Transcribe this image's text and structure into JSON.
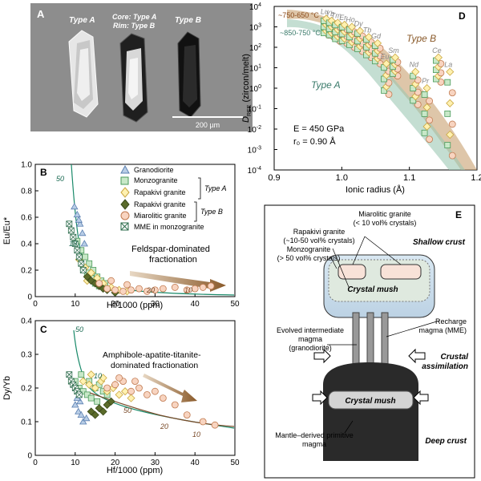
{
  "panel_a": {
    "letter": "A",
    "label_type_a": "Type A",
    "label_core": "Core: Type A",
    "label_rim": "Rim: Type B",
    "label_type_b": "Type B",
    "scalebar": "200 µm"
  },
  "panel_b": {
    "letter": "B",
    "ylabel": "Eu/Eu*",
    "xlabel": "Hf/1000 (ppm)",
    "annotation_line1": "Feldspar-dominated",
    "annotation_line2": "fractionation",
    "curve_labels": [
      "50",
      "10",
      "20",
      "10"
    ]
  },
  "panel_c": {
    "letter": "C",
    "ylabel": "Dy/Yb",
    "xlabel": "Hf/1000 (ppm)",
    "annotation_line1": "Amphibole-apatite-titanite-",
    "annotation_line2": "dominated fractionation",
    "curve_labels": [
      "50",
      "10",
      "50",
      "20",
      "10"
    ]
  },
  "legend": {
    "items": [
      "Granodiorite",
      "Monzogranite",
      "Rapakivi granite",
      "Rapakivi granite",
      "Miarolitic granite",
      "MME in monzogranite"
    ],
    "type_a": "Type A",
    "type_b": "Type B"
  },
  "panel_d": {
    "letter": "D",
    "ylabel_main": "D",
    "ylabel_sub": "REE",
    "ylabel_rest": " (zircon/melt)",
    "xlabel": "Ionic radius (Å)",
    "temp_high": "~750-650 °C",
    "temp_low": "~850-750 °C",
    "type_a": "Type A",
    "type_b": "Type B",
    "param_e": "E = 450 GPa",
    "param_r": "r₀ = 0.90 Å",
    "elements": [
      "Yb",
      "Er",
      "Dy",
      "Gd",
      "Lu",
      "Tm",
      "Ho",
      "Sm",
      "Tb",
      "Nd",
      "Ce",
      "La",
      "Eu",
      "Pr"
    ]
  },
  "panel_e": {
    "letter": "E",
    "miarolitic_1": "Miarolitic granite",
    "miarolitic_2": "(< 10 vol% crystals)",
    "rapakivi_1": "Rapakivi granite",
    "rapakivi_2": "(~10-50 vol% crystals)",
    "monzo_1": "Monzogranite",
    "monzo_2": "(> 50 vol% crystals)",
    "shallow": "Shallow crust",
    "mush_top": "Crystal mush",
    "recharge_1": "Recharge",
    "recharge_2": "magma (MME)",
    "evolved_1": "Evolved intermediate",
    "evolved_2": "magma",
    "evolved_3": "(granodiorite)",
    "assim_1": "Crustal",
    "assim_2": "assimilation",
    "mush_bottom": "Crystal mush",
    "mantle_1": "Mantle–derived primitive",
    "mantle_2": "magma",
    "deep": "Deep crust"
  },
  "chart_data": [
    {
      "type": "scatter",
      "panel": "B",
      "xlabel": "Hf/1000 (ppm)",
      "ylabel": "Eu/Eu*",
      "xlim": [
        0,
        50
      ],
      "ylim": [
        0,
        1.0
      ],
      "xticks": [
        0,
        10,
        20,
        30,
        40,
        50
      ],
      "yticks": [
        0,
        0.2,
        0.4,
        0.6,
        0.8,
        1.0
      ],
      "series": [
        {
          "name": "Granodiorite",
          "x": [
            9.8,
            10.5,
            11.2,
            11.8,
            12.3,
            10.9
          ],
          "y": [
            0.68,
            0.62,
            0.55,
            0.48,
            0.4,
            0.58
          ]
        },
        {
          "name": "Monzogranite",
          "x": [
            10.5,
            11.5,
            12.5,
            13.5,
            14.5,
            15.5,
            16.5,
            17.5,
            12,
            13,
            14,
            15,
            16
          ],
          "y": [
            0.42,
            0.35,
            0.3,
            0.25,
            0.2,
            0.15,
            0.12,
            0.1,
            0.22,
            0.18,
            0.14,
            0.1,
            0.08
          ]
        },
        {
          "name": "Rapakivi granite (Type A)",
          "x": [
            11,
            12.5,
            14,
            15.5,
            17,
            19,
            21,
            23,
            13,
            16,
            18
          ],
          "y": [
            0.28,
            0.22,
            0.18,
            0.14,
            0.1,
            0.07,
            0.05,
            0.04,
            0.12,
            0.08,
            0.06
          ]
        },
        {
          "name": "Rapakivi granite (Type B)",
          "x": [
            13,
            14,
            15,
            16,
            17,
            18,
            20
          ],
          "y": [
            0.15,
            0.12,
            0.1,
            0.08,
            0.06,
            0.05,
            0.03
          ]
        },
        {
          "name": "Miarolitic granite",
          "x": [
            18,
            20,
            22,
            24,
            26,
            28,
            30,
            32,
            35,
            38,
            40,
            42,
            44,
            16,
            19,
            23
          ],
          "y": [
            0.06,
            0.05,
            0.04,
            0.05,
            0.06,
            0.04,
            0.05,
            0.06,
            0.07,
            0.05,
            0.06,
            0.07,
            0.08,
            0.1,
            0.12,
            0.09
          ]
        },
        {
          "name": "MME in monzogranite",
          "x": [
            8.5,
            9,
            9.5,
            10,
            10.5,
            11,
            11.5,
            12
          ],
          "y": [
            0.55,
            0.5,
            0.45,
            0.4,
            0.35,
            0.3,
            0.25,
            0.2
          ]
        }
      ]
    },
    {
      "type": "scatter",
      "panel": "C",
      "xlabel": "Hf/1000 (ppm)",
      "ylabel": "Dy/Yb",
      "xlim": [
        0,
        50
      ],
      "ylim": [
        0,
        0.4
      ],
      "xticks": [
        0,
        10,
        20,
        30,
        40,
        50
      ],
      "yticks": [
        0,
        0.1,
        0.2,
        0.3,
        0.4
      ],
      "series": [
        {
          "name": "Granodiorite",
          "x": [
            10,
            10.8,
            11.5,
            12,
            12.8,
            11.2,
            10.5
          ],
          "y": [
            0.15,
            0.13,
            0.12,
            0.1,
            0.11,
            0.16,
            0.17
          ]
        },
        {
          "name": "Monzogranite",
          "x": [
            10,
            11,
            12,
            13,
            14,
            15,
            16,
            17,
            18,
            11.5,
            13.5,
            15.5
          ],
          "y": [
            0.22,
            0.2,
            0.19,
            0.18,
            0.17,
            0.2,
            0.21,
            0.19,
            0.18,
            0.24,
            0.22,
            0.16
          ]
        },
        {
          "name": "Rapakivi granite (Type A)",
          "x": [
            12,
            13.5,
            15,
            16.5,
            18,
            19.5,
            21,
            22.5,
            24,
            14,
            17,
            20
          ],
          "y": [
            0.22,
            0.21,
            0.2,
            0.22,
            0.19,
            0.2,
            0.18,
            0.19,
            0.17,
            0.24,
            0.23,
            0.21
          ]
        },
        {
          "name": "Rapakivi granite (Type B)",
          "x": [
            14,
            15,
            16,
            17,
            18,
            19
          ],
          "y": [
            0.13,
            0.12,
            0.14,
            0.13,
            0.15,
            0.16
          ]
        },
        {
          "name": "Miarolitic granite",
          "x": [
            18,
            20,
            22,
            24,
            26,
            28,
            30,
            32,
            35,
            38,
            42,
            45,
            21,
            25
          ],
          "y": [
            0.2,
            0.21,
            0.22,
            0.19,
            0.2,
            0.18,
            0.19,
            0.17,
            0.15,
            0.12,
            0.1,
            0.09,
            0.23,
            0.22
          ]
        },
        {
          "name": "MME in monzogranite",
          "x": [
            8.5,
            9,
            9.5,
            10,
            10.5,
            11
          ],
          "y": [
            0.24,
            0.22,
            0.21,
            0.2,
            0.19,
            0.18
          ]
        }
      ]
    },
    {
      "type": "scatter",
      "panel": "D",
      "xlabel": "Ionic radius (Å)",
      "ylabel": "D_REE (zircon/melt)",
      "xlim": [
        0.9,
        1.2
      ],
      "ylim_log10": [
        -4,
        4
      ],
      "xticks": [
        0.9,
        1.0,
        1.1,
        1.2
      ],
      "yticks_log10": [
        -4,
        -3,
        -2,
        -1,
        0,
        1,
        2,
        3,
        4
      ],
      "elements": [
        {
          "el": "Lu",
          "r": 0.977,
          "lo": 2.6,
          "hi": 3.4
        },
        {
          "el": "Yb",
          "r": 0.985,
          "lo": 2.5,
          "hi": 3.3
        },
        {
          "el": "Tm",
          "r": 0.994,
          "lo": 2.3,
          "hi": 3.2
        },
        {
          "el": "Er",
          "r": 1.004,
          "lo": 2.2,
          "hi": 3.1
        },
        {
          "el": "Ho",
          "r": 1.015,
          "lo": 2.0,
          "hi": 3.0
        },
        {
          "el": "Dy",
          "r": 1.027,
          "lo": 1.8,
          "hi": 2.8
        },
        {
          "el": "Tb",
          "r": 1.04,
          "lo": 1.5,
          "hi": 2.5
        },
        {
          "el": "Gd",
          "r": 1.053,
          "lo": 1.2,
          "hi": 2.2
        },
        {
          "el": "Eu",
          "r": 1.066,
          "lo": -0.3,
          "hi": 1.2
        },
        {
          "el": "Sm",
          "r": 1.079,
          "lo": 0.6,
          "hi": 1.5
        },
        {
          "el": "Nd",
          "r": 1.109,
          "lo": -0.8,
          "hi": 0.8
        },
        {
          "el": "Pr",
          "r": 1.126,
          "lo": -2.5,
          "hi": 0.0
        },
        {
          "el": "Ce",
          "r": 1.143,
          "lo": 0.3,
          "hi": 1.5
        },
        {
          "el": "La",
          "r": 1.16,
          "lo": -3.3,
          "hi": 0.8
        }
      ]
    }
  ]
}
